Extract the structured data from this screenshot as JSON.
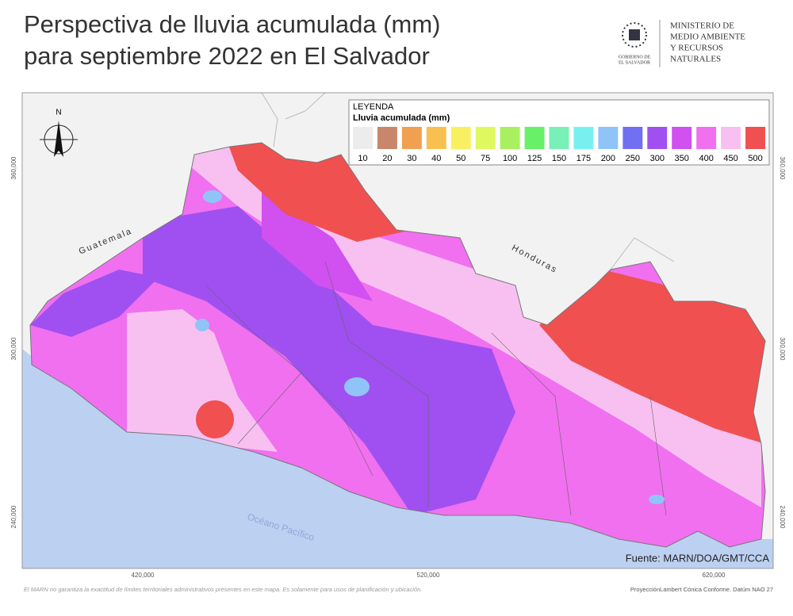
{
  "header": {
    "title_lines": [
      "Perspectiva de lluvia acumulada (mm)",
      "para septiembre 2022 en El Salvador"
    ],
    "logo_caption": [
      "GOBIERNO DE",
      "EL SALVADOR"
    ],
    "ministry": [
      "MINISTERIO DE",
      "MEDIO AMBIENTE",
      "Y RECURSOS",
      "NATURALES"
    ]
  },
  "legend": {
    "title": "LEYENDA",
    "subtitle": "Lluvia acumulada (mm)",
    "items": [
      {
        "value": 10,
        "color": "#ececec"
      },
      {
        "value": 20,
        "color": "#c8876a"
      },
      {
        "value": 30,
        "color": "#f0a050"
      },
      {
        "value": 40,
        "color": "#f8c050"
      },
      {
        "value": 50,
        "color": "#f8f060"
      },
      {
        "value": 75,
        "color": "#e0f860"
      },
      {
        "value": 100,
        "color": "#a8f060"
      },
      {
        "value": 125,
        "color": "#68f068"
      },
      {
        "value": 150,
        "color": "#78f0b8"
      },
      {
        "value": 175,
        "color": "#78f0f0"
      },
      {
        "value": 200,
        "color": "#90c4f8"
      },
      {
        "value": 250,
        "color": "#7070f0"
      },
      {
        "value": 300,
        "color": "#a050f0"
      },
      {
        "value": 350,
        "color": "#d050f0"
      },
      {
        "value": 400,
        "color": "#f070f0"
      },
      {
        "value": 450,
        "color": "#f8c0f0"
      },
      {
        "value": 500,
        "color": "#f05050"
      }
    ]
  },
  "map": {
    "north": "N",
    "labels": {
      "guatemala": "Guatemala",
      "honduras": "Honduras",
      "ocean": "Océano Pacífico"
    },
    "x_coords": [
      "420,000",
      "520,000",
      "620,000"
    ],
    "y_coords": [
      "360,000",
      "300,000",
      "240,000"
    ],
    "source": "Fuente: MARN/DOA/GMT/CCA"
  },
  "footer": {
    "disclaimer": "El MARN no garantiza la exactitud de límites territoriales administrativos presentes en este mapa. Es solamente para usos de planificación y ubicación.",
    "projection": "ProyecciónLambert Cónica Conforme. Datúm NAO 27"
  }
}
